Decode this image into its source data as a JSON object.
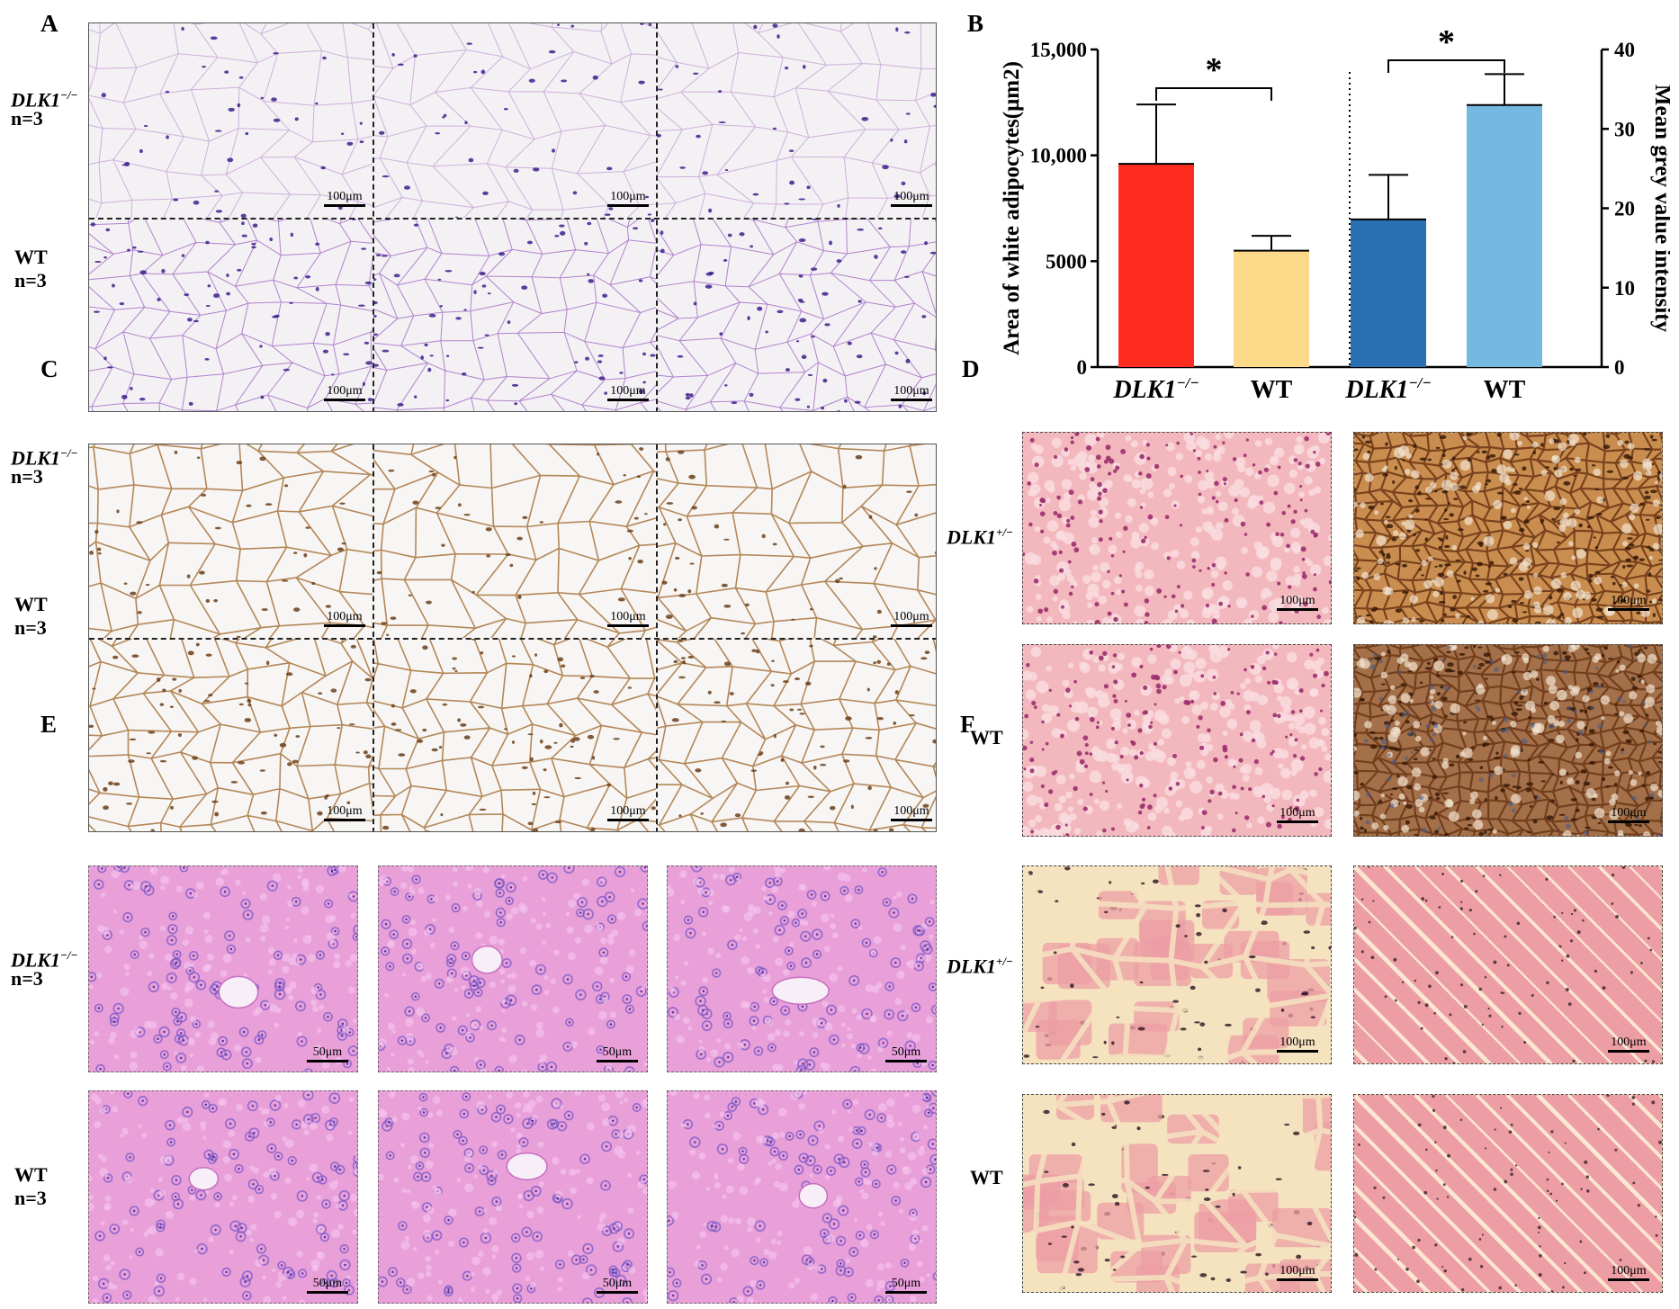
{
  "panels": {
    "A": {
      "label": "A",
      "rows": [
        "DLK1−/−",
        "WT"
      ],
      "n": "n=3",
      "scale": "100μm"
    },
    "B": {
      "label": "B"
    },
    "C": {
      "label": "C",
      "rows": [
        "DLK1−/−",
        "WT"
      ],
      "n": "n=3",
      "scale": "100μm"
    },
    "D": {
      "label": "D",
      "rows": [
        "DLK1+/−",
        "WT"
      ],
      "scale": "100μm"
    },
    "E": {
      "label": "E",
      "rows": [
        "DLK1−/−",
        "WT"
      ],
      "n": "n=3",
      "scale": "50μm"
    },
    "F": {
      "label": "F",
      "rows": [
        "DLK1+/−",
        "WT"
      ],
      "scale": "100μm"
    }
  },
  "text": {
    "gene": "DLK1",
    "ko_sup": "−/−",
    "het_sup": "+/−",
    "wt": "WT",
    "n": "n=3"
  },
  "chart_data": {
    "type": "bar",
    "ylabel": "Area of white adipocytes(μm2)",
    "y2label": "Mean grey value intensity",
    "ylim": [
      0,
      15000
    ],
    "y2lim": [
      0,
      40
    ],
    "yticks": [
      "0",
      "5000",
      "10,000",
      "15,000"
    ],
    "y2ticks": [
      "0",
      "10",
      "20",
      "30",
      "40"
    ],
    "categories": [
      "DLK1−/−",
      "WT",
      "DLK1−/−",
      "WT"
    ],
    "groups": [
      {
        "axis": "left",
        "values": [
          9600,
          5500
        ],
        "errors": [
          2800,
          700
        ],
        "colors": [
          "#ff2d1f",
          "#fdd98a"
        ],
        "significance": "*"
      },
      {
        "axis": "right",
        "values": [
          18.6,
          33
        ],
        "errors": [
          5.6,
          3.9
        ],
        "colors": [
          "#2a71b3",
          "#74b9df"
        ],
        "significance": "*"
      }
    ],
    "grid": false
  },
  "colors": {
    "adipose_he": "#f4f1f4",
    "adipose_he_edge": "#c7a5d7",
    "adipose_he_nuclei": "#3d1f8c",
    "adipose_ihc": "#f7f6f5",
    "adipose_ihc_edge": "#a8733c",
    "liver_he": "#e9a0d9",
    "liver_nuclei": "#7a5bc8",
    "he_pink": "#f3b8be",
    "ihc_brown": "#b47a3f",
    "muscle": "#ec9ea4",
    "muscle_gap": "#f5e3c0"
  }
}
